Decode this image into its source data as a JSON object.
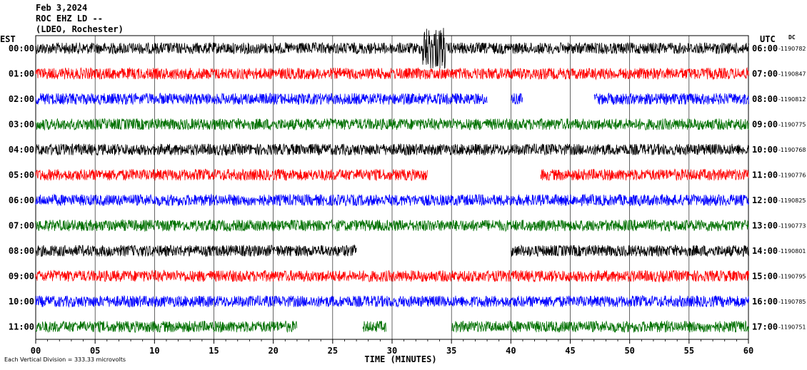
{
  "header": {
    "date": "Feb 3,2024",
    "station": "ROC EHZ LD --",
    "network": "(LDEO, Rochester)"
  },
  "labels": {
    "left_tz": "EST",
    "right_tz": "UTC",
    "dc": "DC",
    "footnote": "Each Vertical Division =  333.33 microvolts"
  },
  "colors": {
    "cycle": [
      "#000000",
      "#ff0000",
      "#0000ff",
      "#007000"
    ],
    "grid": "#000000"
  },
  "chart_data": {
    "type": "line",
    "title": "",
    "xlabel": "TIME (MINUTES)",
    "xlim": [
      0,
      60
    ],
    "x_ticks": [
      "00",
      "05",
      "10",
      "15",
      "20",
      "25",
      "30",
      "35",
      "40",
      "45",
      "50",
      "55",
      "60"
    ],
    "rows": [
      {
        "est": "00:00",
        "utc": "06:00",
        "dc": "-1190782",
        "color": "#000000",
        "gaps": [],
        "event": [
          32.5,
          34.5
        ]
      },
      {
        "est": "01:00",
        "utc": "07:00",
        "dc": "-1190847",
        "color": "#ff0000",
        "gaps": []
      },
      {
        "est": "02:00",
        "utc": "08:00",
        "dc": "-1190812",
        "color": "#0000ff",
        "gaps": [
          [
            38,
            40
          ],
          [
            41,
            45
          ],
          [
            45,
            47
          ]
        ]
      },
      {
        "est": "03:00",
        "utc": "09:00",
        "dc": "-1190775",
        "color": "#007000",
        "gaps": []
      },
      {
        "est": "04:00",
        "utc": "10:00",
        "dc": "-1190768",
        "color": "#000000",
        "gaps": []
      },
      {
        "est": "05:00",
        "utc": "11:00",
        "dc": "-1190776",
        "color": "#ff0000",
        "gaps": [
          [
            33,
            42.5
          ]
        ]
      },
      {
        "est": "06:00",
        "utc": "12:00",
        "dc": "-1190825",
        "color": "#0000ff",
        "gaps": []
      },
      {
        "est": "07:00",
        "utc": "13:00",
        "dc": "-1190773",
        "color": "#007000",
        "gaps": []
      },
      {
        "est": "08:00",
        "utc": "14:00",
        "dc": "-1190801",
        "color": "#000000",
        "gaps": [
          [
            27,
            40
          ]
        ]
      },
      {
        "est": "09:00",
        "utc": "15:00",
        "dc": "-1190795",
        "color": "#ff0000",
        "gaps": []
      },
      {
        "est": "10:00",
        "utc": "16:00",
        "dc": "-1190785",
        "color": "#0000ff",
        "gaps": []
      },
      {
        "est": "11:00",
        "utc": "17:00",
        "dc": "-1190751",
        "color": "#007000",
        "gaps": [
          [
            22,
            27.5
          ],
          [
            29.5,
            35
          ]
        ]
      }
    ]
  }
}
